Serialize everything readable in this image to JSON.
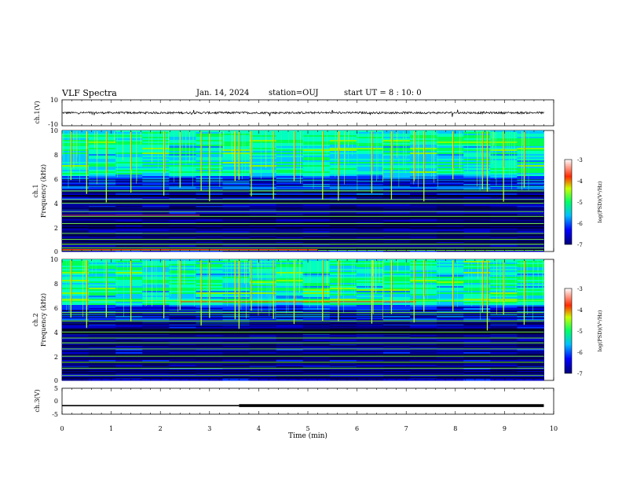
{
  "header": {
    "title": "VLF Spectra",
    "date": "Jan. 14, 2024",
    "station": "station=OUJ",
    "start_ut": "start UT =  8 : 10: 0"
  },
  "chart_data": [
    {
      "type": "line",
      "panel": "ch1-waveform",
      "ylabel": "ch.1(V)",
      "ylim": [
        -10,
        10
      ],
      "y_ticks": [
        "10",
        "-10"
      ],
      "baseline": 0,
      "notes_visible": "noisy waveform near 0 V across 0-9.8 min"
    },
    {
      "type": "heatmap",
      "panel": "ch1-spectrogram",
      "ylabel_line1": "ch.1",
      "ylabel_line2": "Frequency (kHz)",
      "ylim": [
        0,
        10
      ],
      "y_ticks": [
        "0",
        "2",
        "4",
        "6",
        "8",
        "10"
      ],
      "colorbar": {
        "label": "log(PSD)(V²/Hz)",
        "ticks": [
          "-3",
          "-4",
          "-5",
          "-6",
          "-7"
        ],
        "range": [
          -7,
          -3
        ],
        "colors": [
          "#00008b",
          "#0000ff",
          "#00bfff",
          "#00ff7f",
          "#ffff00",
          "#ff4500",
          "#ffffff"
        ]
      }
    },
    {
      "type": "heatmap",
      "panel": "ch2-spectrogram",
      "ylabel_line1": "ch.2",
      "ylabel_line2": "Frequency (kHz)",
      "ylim": [
        0,
        10
      ],
      "y_ticks": [
        "0",
        "2",
        "4",
        "6",
        "8",
        "10"
      ],
      "colorbar": {
        "label": "log(PSD)(V²/Hz)",
        "ticks": [
          "-3",
          "-4",
          "-5",
          "-6",
          "-7"
        ],
        "range": [
          -7,
          -3
        ],
        "colors": [
          "#00008b",
          "#0000ff",
          "#00bfff",
          "#00ff7f",
          "#ffff00",
          "#ff4500",
          "#ffffff"
        ]
      }
    },
    {
      "type": "line",
      "panel": "ch3-level",
      "ylabel": "ch.3(V)",
      "ylim": [
        -5,
        5
      ],
      "y_ticks": [
        "5",
        "0",
        "-5"
      ],
      "x": [
        0,
        3.6,
        3.6,
        9.8
      ],
      "y": [
        -1.7,
        -1.7,
        -1.7,
        -1.7
      ],
      "step_at_min": 3.6
    }
  ],
  "x_axis": {
    "label": "Time (min)",
    "xlim": [
      0,
      10
    ],
    "ticks": [
      "0",
      "1",
      "2",
      "3",
      "4",
      "5",
      "6",
      "7",
      "8",
      "9",
      "10"
    ],
    "data_end": 9.8
  },
  "features": {
    "ch1_bands_khz": [
      0.1,
      0.3,
      0.6,
      1.0,
      1.5,
      2.3,
      2.9,
      3.3,
      4.0,
      4.3,
      5.0
    ],
    "ch2_bands_khz": [
      0.4,
      1.0,
      1.5,
      2.0,
      2.6,
      3.1,
      3.5,
      4.0,
      4.9,
      5.6,
      6.6
    ],
    "bursts_min": [
      0.18,
      0.5,
      0.9,
      1.4,
      2.07,
      2.4,
      2.83,
      3.0,
      3.52,
      3.6,
      3.85,
      4.3,
      4.72,
      5.3,
      5.62,
      6.3,
      6.7,
      7.16,
      7.36,
      7.95,
      8.55,
      8.65,
      8.98,
      9.4
    ]
  }
}
